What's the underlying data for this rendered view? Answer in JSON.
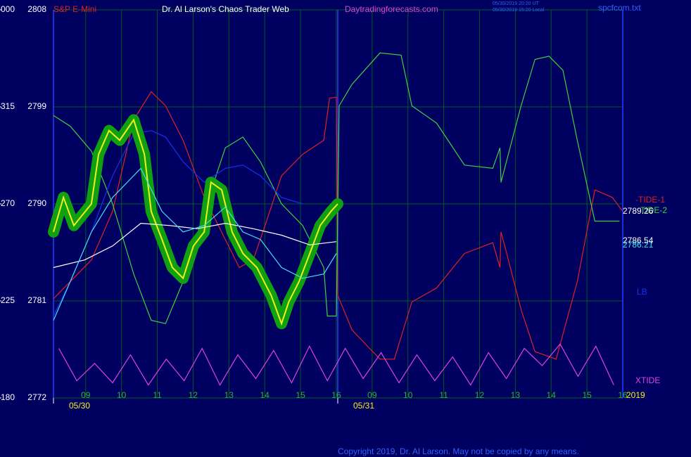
{
  "chart_data": {
    "type": "line",
    "title": "Dr. Al Larson's Chaos Trader Web",
    "instrument": "S&P E-Mini",
    "website": "Daytradingforecasts.com",
    "timestamps": [
      "05/30/2019 20:20 UT",
      "05/30/2019 15:20 Local"
    ],
    "file": "spcfcom.txt",
    "copyright": "Copyright 2019, Dr. Al Larson. May not be copied by any means.",
    "year": "2019",
    "grid": true,
    "xlim": [
      8.1,
      24
    ],
    "ylim": [
      2772,
      2808
    ],
    "y2lim": [
      180,
      360
    ],
    "xticks": [
      {
        "value": 9,
        "label": "09"
      },
      10,
      11,
      12,
      13,
      14,
      15,
      16,
      {
        "value": 17,
        "label": "09"
      },
      {
        "value": 18,
        "label": "10"
      },
      {
        "value": 19,
        "label": "11"
      },
      {
        "value": 20,
        "label": "12"
      },
      {
        "value": 21,
        "label": "13"
      },
      {
        "value": 22,
        "label": "14"
      },
      {
        "value": 23,
        "label": "15"
      },
      {
        "value": 24,
        "label": "16"
      }
    ],
    "date_ticks": [
      {
        "value": 8.1,
        "label": "05/30"
      },
      {
        "value": 16.04,
        "label": "05/31"
      }
    ],
    "yticks": [
      2772,
      2781,
      2790,
      2799,
      2808
    ],
    "y2ticks": [
      180,
      225,
      270,
      315,
      {
        "value": 360,
        "label": "000"
      }
    ],
    "annotations": [
      {
        "text": "2789.26",
        "color": "#ffffff"
      },
      {
        "text": "2786.54",
        "color": "#ffffff"
      },
      {
        "text": "2786.21",
        "color": "#40e0f0"
      }
    ],
    "series": [
      {
        "name": "-TIDE-1",
        "color": "#e02020",
        "x": [
          8.1,
          8.57,
          9.16,
          9.75,
          10.34,
          10.83,
          11.23,
          11.72,
          12.31,
          12.9,
          13.29,
          13.68,
          14.08,
          14.47,
          15.06,
          15.65,
          15.81,
          16.0,
          16.04,
          16.44,
          17.22,
          17.62,
          18.11,
          18.8,
          19.58,
          20.37,
          20.57,
          20.6,
          20.76,
          21.16,
          21.55,
          22.14,
          22.73,
          23.22,
          23.71,
          24.0
        ],
        "values": [
          2781.2,
          2782.8,
          2784.8,
          2789.3,
          2797.8,
          2800.4,
          2799.1,
          2795.9,
          2790.6,
          2786.7,
          2784.1,
          2784.8,
          2788.7,
          2792.6,
          2794.6,
          2795.9,
          2799.8,
          2799.9,
          2781.5,
          2778.3,
          2775.6,
          2775.6,
          2780.9,
          2782.2,
          2785.4,
          2786.4,
          2784.1,
          2787.4,
          2785.4,
          2780.2,
          2776.3,
          2775.6,
          2782.8,
          2791.3,
          2790.6,
          2789.3
        ]
      },
      {
        "name": "TIDE-2",
        "color": "#40d040",
        "x": [
          8.1,
          8.57,
          9.16,
          9.75,
          10.34,
          10.83,
          11.23,
          11.72,
          12.31,
          12.9,
          13.39,
          13.88,
          14.47,
          15.06,
          15.65,
          15.75,
          16.0,
          16.08,
          16.44,
          17.22,
          17.81,
          18.11,
          18.8,
          19.58,
          20.37,
          20.57,
          20.6,
          21.16,
          21.55,
          21.94,
          22.33,
          22.73,
          23.22,
          23.91
        ],
        "values": [
          2798.2,
          2797.2,
          2794.9,
          2790.0,
          2783.5,
          2779.2,
          2778.9,
          2782.8,
          2789.3,
          2795.2,
          2796.2,
          2793.9,
          2790.0,
          2788.0,
          2784.1,
          2779.6,
          2779.6,
          2799.1,
          2801.1,
          2804.0,
          2803.8,
          2799.1,
          2797.5,
          2793.6,
          2793.3,
          2795.2,
          2792.0,
          2799.1,
          2803.4,
          2803.7,
          2802.4,
          2795.9,
          2788.4,
          2788.4
        ]
      },
      {
        "name": "LB",
        "color": "#1830e8",
        "x": [
          8.1,
          8.57,
          9.16,
          9.75,
          10.34,
          10.83,
          11.23,
          11.72,
          12.31,
          12.9,
          13.39,
          13.88,
          14.47,
          15.06
        ],
        "values": [
          2779.6,
          2782.8,
          2787.4,
          2792.6,
          2796.5,
          2796.8,
          2796.2,
          2793.9,
          2792.0,
          2793.3,
          2793.6,
          2792.6,
          2790.6,
          2790.0
        ]
      },
      {
        "name": "XTIDE",
        "color": "#e040e0",
        "axis": "y2",
        "x": [
          8.25,
          8.75,
          9.25,
          9.75,
          10.25,
          10.75,
          11.25,
          11.75,
          12.25,
          12.75,
          13.25,
          13.75,
          14.25,
          14.75,
          15.25,
          15.75,
          16.25,
          16.75,
          17.25,
          17.75,
          18.25,
          18.75,
          19.25,
          19.75,
          20.25,
          20.75,
          21.25,
          21.75,
          22.25,
          22.75,
          23.25,
          23.75
        ],
        "values": [
          203,
          188,
          196,
          187,
          200,
          186,
          198,
          188,
          203,
          186,
          200,
          189,
          202,
          187,
          204,
          188,
          203,
          189,
          201,
          187,
          200,
          188,
          199,
          186,
          201,
          189,
          203,
          195,
          205,
          190,
          204,
          186
        ]
      },
      {
        "color": "#f0f020",
        "halo": "#10a010",
        "x": [
          8.1,
          8.38,
          8.67,
          9.16,
          9.36,
          9.65,
          9.95,
          10.34,
          10.64,
          10.83,
          11.13,
          11.42,
          11.72,
          12.01,
          12.31,
          12.5,
          12.8,
          13.09,
          13.39,
          13.78,
          14.18,
          14.47,
          14.67,
          14.96,
          15.26,
          15.55,
          15.85,
          16.04
        ],
        "values": [
          2787.4,
          2790.6,
          2788.0,
          2790.0,
          2794.6,
          2796.8,
          2795.9,
          2797.8,
          2794.6,
          2789.3,
          2786.7,
          2784.1,
          2783.1,
          2786.1,
          2787.4,
          2792.0,
          2791.3,
          2787.4,
          2785.4,
          2784.1,
          2781.5,
          2778.9,
          2780.9,
          2782.8,
          2785.4,
          2788.0,
          2789.3,
          2790.0
        ]
      },
      {
        "color": "#ffffff",
        "x": [
          8.1,
          8.97,
          9.75,
          10.54,
          11.33,
          12.11,
          12.9,
          13.68,
          14.47,
          15.26,
          16.0
        ],
        "values": [
          2784.1,
          2784.8,
          2786.1,
          2788.2,
          2788.0,
          2787.7,
          2788.2,
          2787.7,
          2787.1,
          2786.2,
          2786.5
        ]
      },
      {
        "color": "#40e0f0",
        "x": [
          8.1,
          8.57,
          9.16,
          9.75,
          10.54,
          11.13,
          11.72,
          12.31,
          12.9,
          13.39,
          13.88,
          14.47,
          15.06,
          15.65,
          16.0
        ],
        "values": [
          2779.2,
          2782.8,
          2787.4,
          2790.6,
          2793.3,
          2789.3,
          2787.4,
          2788.0,
          2789.7,
          2787.4,
          2786.7,
          2784.1,
          2783.1,
          2783.5,
          2785.4
        ]
      }
    ]
  }
}
